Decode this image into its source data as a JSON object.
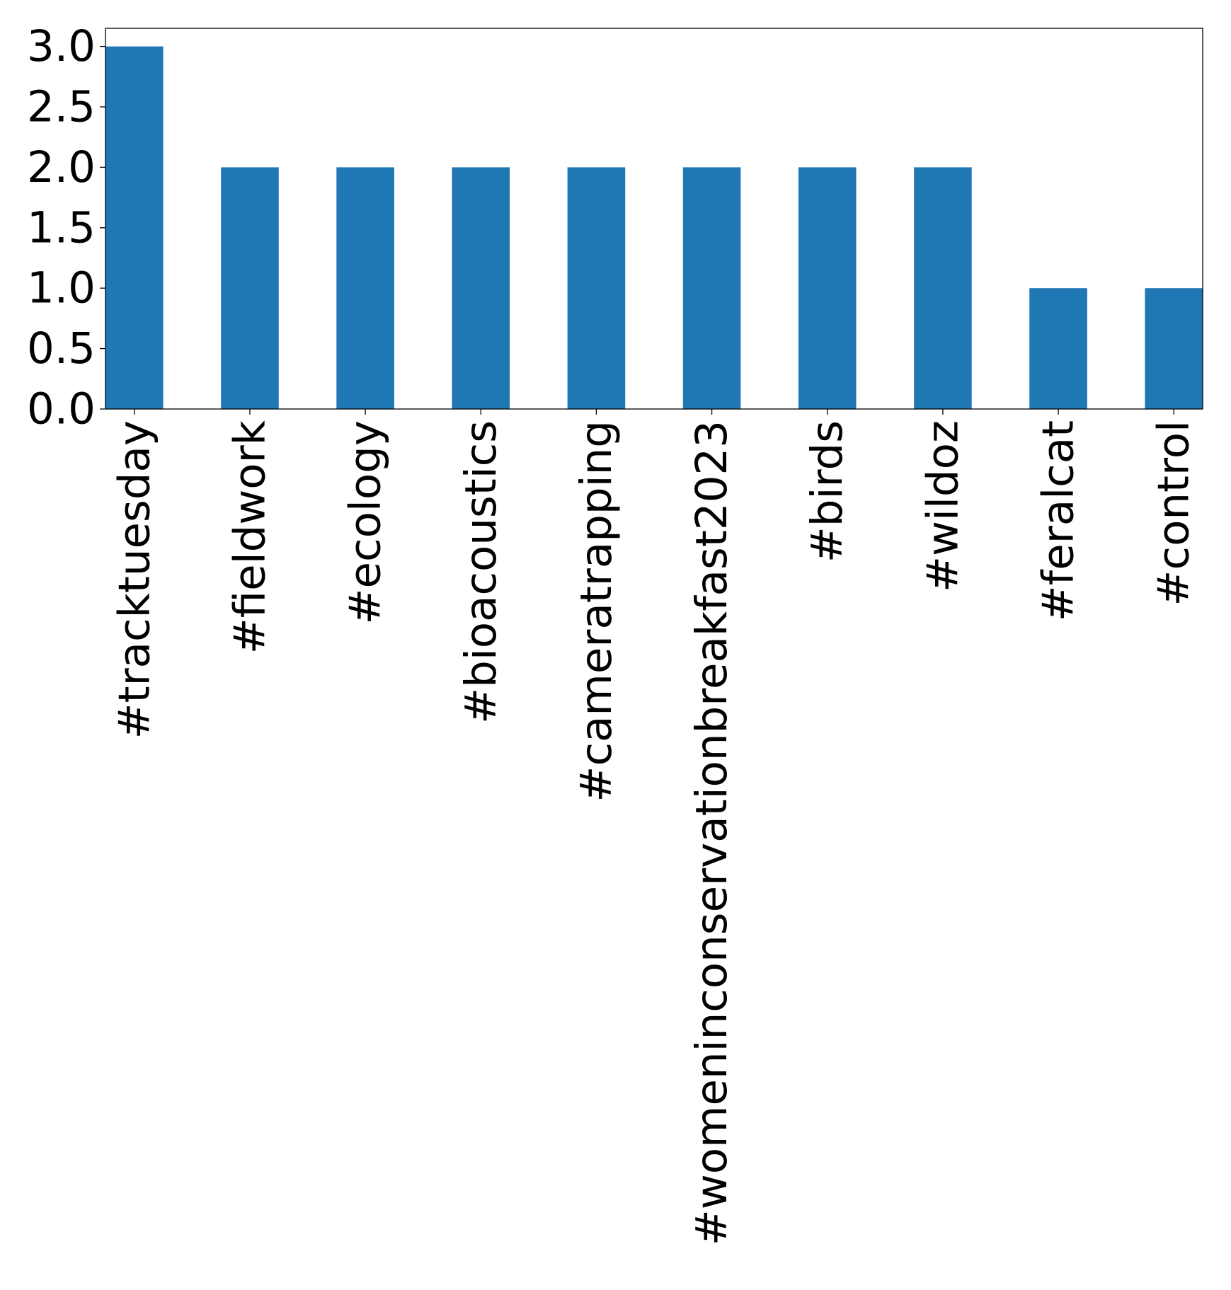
{
  "chart_data": {
    "type": "bar",
    "categories": [
      "#tracktuesday",
      "#fieldwork",
      "#ecology",
      "#bioacoustics",
      "#cameratrapping",
      "#womeninconservationbreakfast2023",
      "#birds",
      "#wildoz",
      "#feralcat",
      "#control"
    ],
    "values": [
      3,
      2,
      2,
      2,
      2,
      2,
      2,
      2,
      1,
      1
    ],
    "ylim": [
      0,
      3.15
    ],
    "yticks": [
      0.0,
      0.5,
      1.0,
      1.5,
      2.0,
      2.5,
      3.0
    ],
    "ytick_labels": [
      "0.0",
      "0.5",
      "1.0",
      "1.5",
      "2.0",
      "2.5",
      "3.0"
    ],
    "xlabel": "",
    "ylabel": "",
    "title": "",
    "grid": false,
    "legend": "none",
    "bar_color": "#1f77b4",
    "x_tick_rotation": "vertical"
  }
}
